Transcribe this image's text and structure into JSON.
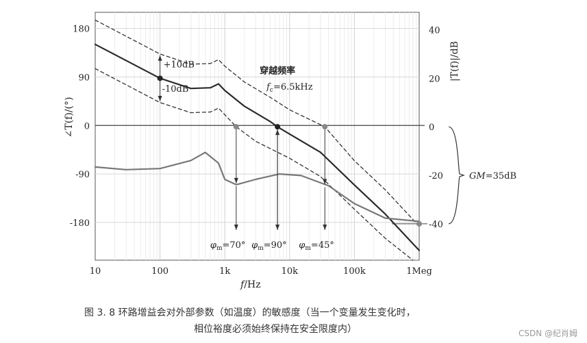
{
  "chart_data": {
    "type": "line",
    "x_scale": "log",
    "xlim": [
      10,
      1000000
    ],
    "x_ticks": [
      {
        "value": 10,
        "label": "10"
      },
      {
        "value": 100,
        "label": "100"
      },
      {
        "value": 1000,
        "label": "1k"
      },
      {
        "value": 10000,
        "label": "10k"
      },
      {
        "value": 100000,
        "label": "100k"
      },
      {
        "value": 1000000,
        "label": "1Meg"
      }
    ],
    "xlabel_var": "f",
    "xlabel_unit": "/Hz",
    "left_axis": {
      "label": "∠T(f)/(°)",
      "lim": [
        -250,
        210
      ],
      "ticks": [
        180,
        90,
        0,
        -90,
        -180
      ]
    },
    "right_axis": {
      "label": "|T(f)|/dB",
      "lim": [
        -55,
        47.2
      ],
      "ticks": [
        40,
        20,
        0,
        -20,
        -40
      ]
    },
    "series": [
      {
        "name": "|T(f)| (dB)",
        "axis": "right",
        "style": "solid-dark",
        "x": [
          10,
          100,
          300,
          600,
          800,
          1000,
          2000,
          5000,
          6500,
          10000,
          30000,
          100000,
          300000,
          1000000
        ],
        "values": [
          34,
          20,
          15.8,
          16.1,
          17.7,
          15,
          8.5,
          2.2,
          0,
          -3,
          -10.5,
          -24,
          -36,
          -51
        ]
      },
      {
        "name": "|T(f)| +10dB",
        "axis": "right",
        "style": "dashed",
        "x": [
          10,
          100,
          300,
          600,
          800,
          1000,
          2000,
          5000,
          10000,
          35000,
          100000,
          300000,
          1000000
        ],
        "values": [
          44,
          30,
          25.8,
          26.1,
          27.7,
          25,
          18.5,
          12.2,
          7,
          0,
          -14,
          -26,
          -41
        ]
      },
      {
        "name": "|T(f)| -10dB",
        "axis": "right",
        "style": "dashed",
        "x": [
          10,
          100,
          300,
          600,
          800,
          1000,
          1500,
          3000,
          10000,
          30000,
          100000,
          300000,
          800000
        ],
        "values": [
          24,
          10,
          5.8,
          6.1,
          7.7,
          5,
          0,
          -6,
          -13,
          -20.5,
          -34,
          -46,
          -55
        ]
      },
      {
        "name": "∠T(f) (°)",
        "axis": "left",
        "style": "solid-gray",
        "x": [
          10,
          30,
          100,
          300,
          500,
          800,
          1000,
          1500,
          3000,
          7000,
          15000,
          40000,
          100000,
          300000,
          1000000
        ],
        "values": [
          -77,
          -82,
          -80,
          -65,
          -50,
          -70,
          -100,
          -110,
          -100,
          -90,
          -93,
          -112,
          -145,
          -172,
          -178
        ]
      }
    ],
    "markers": [
      {
        "label": "+10dB",
        "x": 100,
        "value": 20,
        "axis": "right"
      },
      {
        "label": "穿越频率",
        "sub": "fc=6.5kHz",
        "x": 6500,
        "value": 0,
        "axis": "right"
      },
      {
        "label": "",
        "x": 1500,
        "value": 0,
        "axis": "right"
      },
      {
        "label": "",
        "x": 35000,
        "value": 0,
        "axis": "right"
      },
      {
        "label": "",
        "x": 1000000,
        "value": -40,
        "axis": "right"
      }
    ],
    "annotations": {
      "plus10": "+10dB",
      "minus10": "-10dB",
      "crossover_title": "穿越频率",
      "crossover_f": "f",
      "crossover_sub": "c",
      "crossover_val": "=6.5kHz",
      "gm_var": "GM",
      "gm_val": "=35dB",
      "phi": "φ",
      "phi_sub": "m",
      "pm": [
        {
          "x": 1500,
          "text": "=70°"
        },
        {
          "x": 6500,
          "text": "=90°"
        },
        {
          "x": 35000,
          "text": "=45°"
        }
      ]
    }
  },
  "caption": {
    "line1": "图 3. 8    环路增益会对外部参数（如温度）的敏感度（当一个变量发生变化时，",
    "line2": "相位裕度必须始终保持在安全限度内）"
  },
  "watermark": "CSDN @纪肖姆"
}
